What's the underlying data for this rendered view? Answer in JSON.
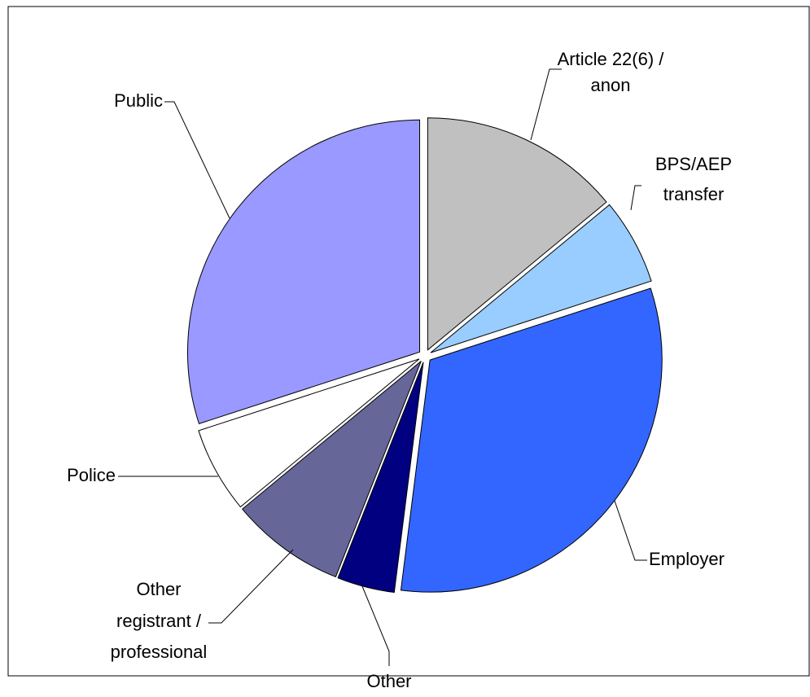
{
  "chart_data": {
    "type": "pie",
    "categories": [
      [
        "Article 22(6) /",
        "anon"
      ],
      [
        "BPS/AEP",
        "transfer"
      ],
      [
        "Employer"
      ],
      [
        "Other"
      ],
      [
        "Other",
        "registrant /",
        "professional"
      ],
      [
        "Police"
      ],
      [
        "Public"
      ]
    ],
    "values": [
      14,
      6,
      32,
      4,
      8,
      6,
      30
    ],
    "colors": [
      "#c0c0c0",
      "#99ccff",
      "#3366ff",
      "#000080",
      "#666699",
      "#ffffff",
      "#9999ff"
    ]
  }
}
